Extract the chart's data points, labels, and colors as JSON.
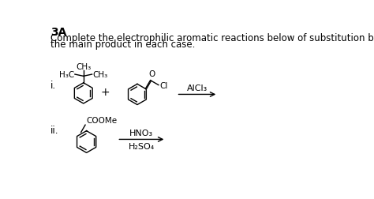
{
  "title": "3A",
  "subtitle_line1": "Complete the electrophilic aromatic reactions below of substitution by designing",
  "subtitle_line2": "the main product in each case.",
  "label_i": "i.",
  "label_ii": "ii.",
  "plus_sign": "+",
  "alcl3": "AlCl₃",
  "hno3": "HNO₃",
  "h2so4": "H₂SO₄",
  "coome": "COOMe",
  "ch3_top": "CH₃",
  "h3c": "H₃C",
  "ch3_right": "CH₃",
  "o_label": "O",
  "cl_label": "Cl",
  "background": "#ffffff",
  "text_color": "#000000",
  "title_fontsize": 10,
  "body_fontsize": 8.5,
  "chem_fontsize": 7.5,
  "label_fontsize": 8.5,
  "sub_fontsize": 6.5
}
